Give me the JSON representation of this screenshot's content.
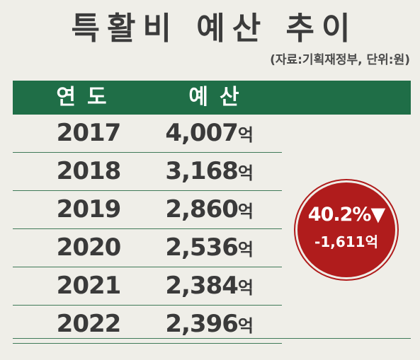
{
  "title": "특활비 예산 추이",
  "source": "(자료:기획재정부, 단위:원)",
  "table": {
    "headers": [
      "연도",
      "예산"
    ],
    "unit": "억"
  },
  "badge": {
    "percent": "40.2%▼",
    "diff": "-1,611억"
  },
  "chart_data": {
    "type": "table",
    "title": "특활비 예산 추이",
    "columns": [
      "연도",
      "예산"
    ],
    "categories": [
      "2017",
      "2018",
      "2019",
      "2020",
      "2021",
      "2022"
    ],
    "values": [
      4007,
      3168,
      2860,
      2536,
      2384,
      2396
    ],
    "value_labels": [
      "4,007",
      "3,168",
      "2,860",
      "2,536",
      "2,384",
      "2,396"
    ],
    "colors": {
      "header": "#1f6e47",
      "badge": "#b01c1c"
    }
  }
}
